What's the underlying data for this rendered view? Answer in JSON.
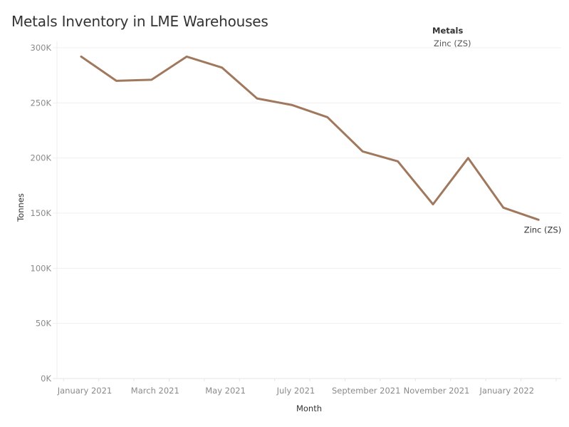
{
  "chart_data": {
    "type": "line",
    "title": "Metals Inventory in LME Warehouses",
    "xlabel": "Month",
    "ylabel": "Tonnes",
    "ylim": [
      0,
      300000
    ],
    "yticks": [
      0,
      50000,
      100000,
      150000,
      200000,
      250000,
      300000
    ],
    "ytick_labels": [
      "0K",
      "50K",
      "100K",
      "150K",
      "200K",
      "250K",
      "300K"
    ],
    "x": [
      "2021-01",
      "2021-02",
      "2021-03",
      "2021-04",
      "2021-05",
      "2021-06",
      "2021-07",
      "2021-08",
      "2021-09",
      "2021-10",
      "2021-11",
      "2021-12",
      "2022-01",
      "2022-02"
    ],
    "xtick_labels": [
      {
        "index": 0,
        "label": "January 2021"
      },
      {
        "index": 2,
        "label": "March 2021"
      },
      {
        "index": 4,
        "label": "May 2021"
      },
      {
        "index": 6,
        "label": "July 2021"
      },
      {
        "index": 8,
        "label": "September 2021"
      },
      {
        "index": 10,
        "label": "November 2021"
      },
      {
        "index": 12,
        "label": "January 2022"
      }
    ],
    "grid": true,
    "legend": {
      "title": "Metals",
      "position": "top-right"
    },
    "series": [
      {
        "name": "Zinc (ZS)",
        "color": "#a0785e",
        "values": [
          292000,
          270000,
          271000,
          292000,
          282000,
          254000,
          248000,
          237000,
          206000,
          197000,
          158000,
          200000,
          155000,
          144000
        ],
        "end_label": "Zinc (ZS)"
      }
    ]
  }
}
